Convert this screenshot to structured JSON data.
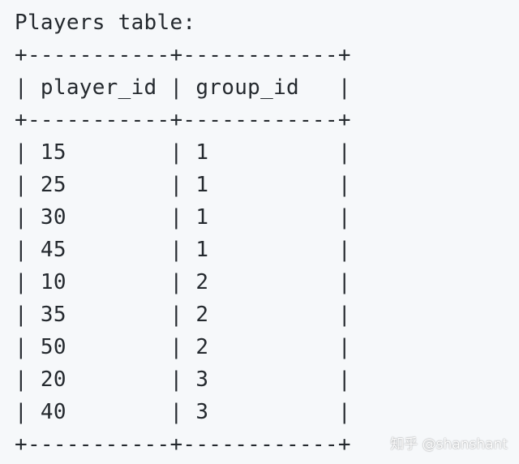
{
  "document": {
    "title": "Players table:",
    "border_line": "+-----------+------------+",
    "header_row": "| player_id | group_id   |",
    "rows": [
      "| 15        | 1          |",
      "| 25        | 1          |",
      "| 30        | 1          |",
      "| 45        | 1          |",
      "| 10        | 2          |",
      "| 35        | 2          |",
      "| 50        | 2          |",
      "| 20        | 3          |",
      "| 40        | 3          |"
    ]
  },
  "watermark": "知乎 @shanshant"
}
